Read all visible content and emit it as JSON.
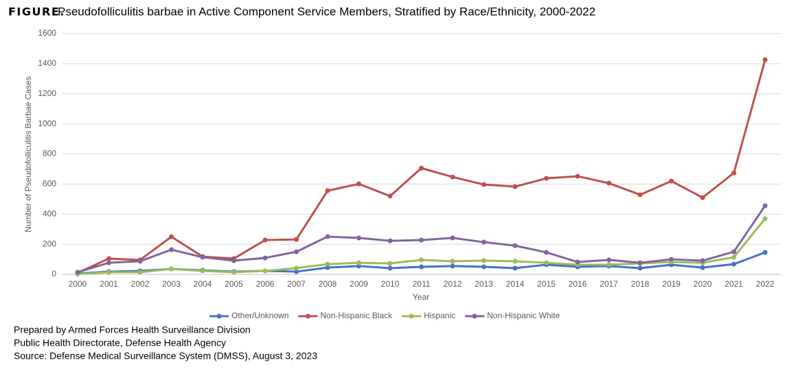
{
  "chart_data": {
    "type": "line",
    "title_label": "FIGURE.",
    "title": "Pseudofolliculitis barbae in Active Component Service Members, Stratified by Race/Ethnicity, 2000-2022",
    "x_label": "Year",
    "y_label": "Number of Pseudofolliculitis Barbae Cases",
    "x": [
      2000,
      2001,
      2002,
      2003,
      2004,
      2005,
      2006,
      2007,
      2008,
      2009,
      2010,
      2011,
      2012,
      2013,
      2014,
      2015,
      2016,
      2017,
      2018,
      2019,
      2020,
      2021,
      2022
    ],
    "xlim": [
      2000,
      2022
    ],
    "xticks": [
      2000,
      2001,
      2002,
      2003,
      2004,
      2005,
      2006,
      2007,
      2008,
      2009,
      2010,
      2011,
      2012,
      2013,
      2014,
      2015,
      2016,
      2017,
      2018,
      2019,
      2020,
      2021,
      2022
    ],
    "ylim": [
      0,
      1600
    ],
    "yticks": [
      0,
      200,
      400,
      600,
      800,
      1000,
      1200,
      1400,
      1600
    ],
    "grid": true,
    "legend": "bottom",
    "series": [
      {
        "name": "Other/Unknown",
        "color": "#4472c4",
        "values": [
          5,
          18,
          23,
          36,
          27,
          18,
          23,
          18,
          45,
          55,
          41,
          50,
          55,
          50,
          41,
          64,
          50,
          55,
          41,
          64,
          45,
          68,
          146
        ]
      },
      {
        "name": "Non-Hispanic Black",
        "color": "#c0504d",
        "values": [
          10,
          105,
          96,
          250,
          118,
          105,
          228,
          232,
          556,
          601,
          520,
          706,
          647,
          597,
          583,
          638,
          652,
          606,
          529,
          620,
          510,
          674,
          1426
        ]
      },
      {
        "name": "Hispanic",
        "color": "#9bbb59",
        "values": [
          2,
          14,
          14,
          36,
          23,
          14,
          23,
          41,
          68,
          77,
          73,
          96,
          87,
          91,
          87,
          77,
          64,
          64,
          73,
          82,
          77,
          114,
          370
        ]
      },
      {
        "name": "Non-Hispanic White",
        "color": "#8064a2",
        "values": [
          14,
          77,
          87,
          164,
          114,
          91,
          109,
          150,
          251,
          242,
          223,
          228,
          242,
          214,
          191,
          146,
          82,
          96,
          77,
          100,
          91,
          150,
          456
        ]
      }
    ]
  },
  "notes": [
    "Prepared by Armed Forces Health Surveillance Division",
    "Public Health Directorate, Defense Health Agency",
    "Source: Defense Medical Surveillance System (DMSS), August 3, 2023"
  ]
}
